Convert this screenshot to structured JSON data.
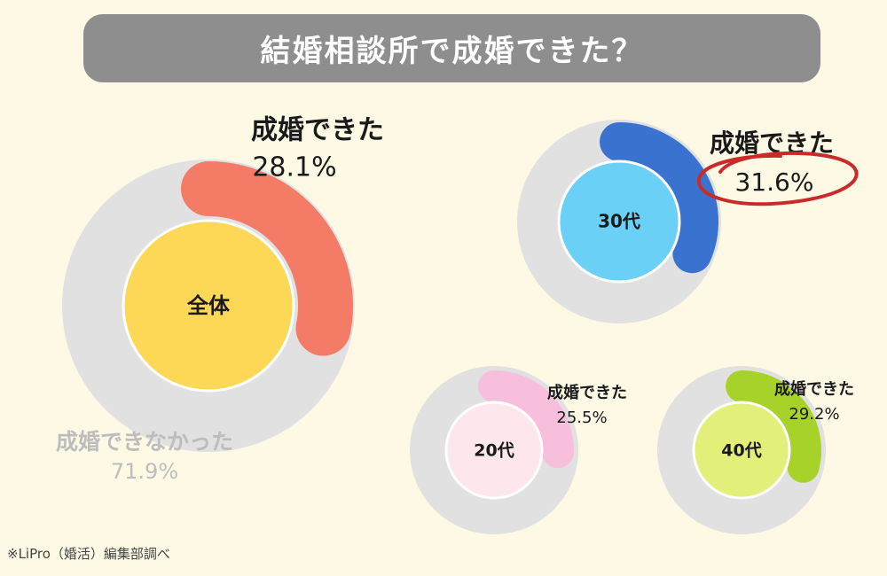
{
  "title": "結婚相談所で成婚できた？",
  "footnote": "※LiPro（婚活）編集部調べ",
  "colors": {
    "background": "#fdf9e5",
    "title_bar": "#8e8e8e",
    "track": "#e1e1e1",
    "annotation_circle": "#c92a2a"
  },
  "chart_data": [
    {
      "type": "pie",
      "center_label": "全体",
      "categories": [
        "成婚できた",
        "成婚できなかった"
      ],
      "values": [
        28.1,
        71.9
      ],
      "value_labels": [
        "28.1%",
        "71.9%"
      ],
      "colors": {
        "arc": "#f47c67",
        "center": "#fcd856"
      }
    },
    {
      "type": "pie",
      "center_label": "30代",
      "categories": [
        "成婚できた"
      ],
      "values": [
        31.6
      ],
      "value_labels": [
        "31.6%"
      ],
      "highlighted": true,
      "colors": {
        "arc": "#3a72cf",
        "center": "#6bd0f5"
      }
    },
    {
      "type": "pie",
      "center_label": "20代",
      "categories": [
        "成婚できた"
      ],
      "values": [
        25.5
      ],
      "value_labels": [
        "25.5%"
      ],
      "colors": {
        "arc": "#f7bfdc",
        "center": "#fde6ec"
      }
    },
    {
      "type": "pie",
      "center_label": "40代",
      "categories": [
        "成婚できた"
      ],
      "values": [
        29.2
      ],
      "value_labels": [
        "29.2%"
      ],
      "colors": {
        "arc": "#a7d22a",
        "center": "#e2f07a"
      }
    }
  ]
}
